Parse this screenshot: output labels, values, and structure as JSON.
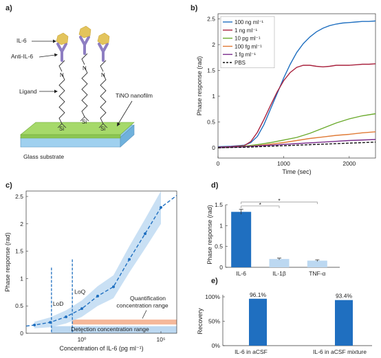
{
  "panels": {
    "a": {
      "letter": "a)",
      "labels": {
        "il6": "IL-6",
        "anti": "Anti-IL-6",
        "ligand": "Ligand",
        "film": "TiNO nanofilm",
        "substrate": "Glass substrate",
        "n": "N",
        "si": "Si"
      },
      "colors": {
        "il6": "#e3c45c",
        "anti": "#8e7ec2",
        "film": "#a6d96a",
        "substrate": "#8ec6e8"
      }
    },
    "b": {
      "letter": "b)",
      "chart_data": {
        "type": "line",
        "xlabel": "Time (sec)",
        "ylabel": "Phase response (rad)",
        "xlim": [
          0,
          2400
        ],
        "ylim": [
          -0.2,
          2.6
        ],
        "xticks": [
          0,
          1000,
          2000
        ],
        "yticks": [
          0,
          0.5,
          1,
          1.5,
          2,
          2.5
        ],
        "legend_position": "top-left",
        "series": [
          {
            "name": "100 ng ml⁻¹",
            "color": "#1f6fc0",
            "dash": "solid",
            "x": [
              0,
              200,
              400,
              500,
              600,
              700,
              800,
              900,
              1000,
              1100,
              1200,
              1300,
              1400,
              1500,
              1600,
              1700,
              1800,
              1900,
              2000,
              2100,
              2200,
              2300,
              2400
            ],
            "y": [
              0.02,
              0.03,
              0.05,
              0.1,
              0.22,
              0.45,
              0.75,
              1.05,
              1.35,
              1.62,
              1.85,
              2.02,
              2.15,
              2.25,
              2.32,
              2.37,
              2.4,
              2.42,
              2.43,
              2.44,
              2.45,
              2.45,
              2.46
            ]
          },
          {
            "name": "1 ng ml⁻¹",
            "color": "#a8203c",
            "dash": "solid",
            "x": [
              0,
              200,
              400,
              500,
              600,
              700,
              800,
              900,
              1000,
              1100,
              1200,
              1300,
              1400,
              1500,
              1600,
              1700,
              1800,
              1900,
              2000,
              2100,
              2200,
              2300,
              2400
            ],
            "y": [
              0.01,
              0.02,
              0.04,
              0.12,
              0.3,
              0.55,
              0.82,
              1.08,
              1.3,
              1.46,
              1.56,
              1.6,
              1.6,
              1.58,
              1.57,
              1.58,
              1.6,
              1.6,
              1.6,
              1.61,
              1.62,
              1.62,
              1.63
            ]
          },
          {
            "name": "10 pg ml⁻¹",
            "color": "#6aaa2c",
            "dash": "solid",
            "x": [
              0,
              200,
              400,
              600,
              800,
              1000,
              1200,
              1400,
              1600,
              1800,
              2000,
              2200,
              2400
            ],
            "y": [
              0.0,
              0.01,
              0.03,
              0.06,
              0.1,
              0.15,
              0.2,
              0.28,
              0.38,
              0.48,
              0.56,
              0.62,
              0.66
            ]
          },
          {
            "name": "100 fg ml⁻¹",
            "color": "#e07a35",
            "dash": "solid",
            "x": [
              0,
              200,
              400,
              600,
              800,
              1000,
              1200,
              1400,
              1600,
              1800,
              2000,
              2200,
              2400
            ],
            "y": [
              0.0,
              0.01,
              0.02,
              0.04,
              0.07,
              0.1,
              0.14,
              0.18,
              0.21,
              0.24,
              0.26,
              0.29,
              0.31
            ]
          },
          {
            "name": "1 fg ml⁻¹",
            "color": "#7a2c8c",
            "dash": "solid",
            "x": [
              0,
              400,
              800,
              1200,
              1600,
              2000,
              2400
            ],
            "y": [
              0.0,
              0.02,
              0.05,
              0.08,
              0.11,
              0.14,
              0.16
            ]
          },
          {
            "name": "PBS",
            "color": "#111111",
            "dash": "dashed",
            "x": [
              0,
              400,
              800,
              1200,
              1600,
              2000,
              2400
            ],
            "y": [
              0.0,
              0.01,
              0.03,
              0.05,
              0.07,
              0.09,
              0.11
            ]
          }
        ]
      }
    },
    "c": {
      "letter": "c)",
      "chart_data": {
        "type": "scatter",
        "xscale": "log",
        "xlabel": "Concentration of IL-6 (pg ml⁻¹)",
        "ylabel": "Phase response (rad)",
        "xlim": [
          0.0003,
          1000000
        ],
        "ylim": [
          0,
          2.6
        ],
        "xticks": [
          1,
          100000
        ],
        "xticklabels": [
          "10⁰",
          "10⁵"
        ],
        "yticks": [
          0,
          0.5,
          1,
          1.5,
          2,
          2.5
        ],
        "points": {
          "x": [
            0.001,
            0.01,
            0.1,
            1,
            10,
            100,
            1000,
            10000,
            100000
          ],
          "y": [
            0.15,
            0.2,
            0.3,
            0.45,
            0.68,
            0.85,
            1.35,
            1.82,
            2.3
          ]
        },
        "lod_x": 0.012,
        "loq_x": 0.25,
        "annotations": {
          "lod": "LoD",
          "loq": "LoQ",
          "quant_1": "Quantification",
          "quant_2": "concentration range",
          "detect": "Detection concentration range"
        },
        "colors": {
          "fit": "#1f6fc0",
          "band": "#bcd8f1",
          "quant": "#f5b89a",
          "detect": "#bcd8f1"
        }
      }
    },
    "d": {
      "letter": "d)",
      "chart_data": {
        "type": "bar",
        "ylabel": "Phase response (rad)",
        "categories": [
          "IL-6",
          "IL-1β",
          "TNF-α"
        ],
        "values": [
          1.33,
          0.2,
          0.16
        ],
        "errors": [
          0.06,
          0.02,
          0.02
        ],
        "colors": [
          "#1f6fc0",
          "#bcd8f1",
          "#bcd8f1"
        ],
        "ylim": [
          0,
          1.5
        ],
        "yticks": [
          0,
          0.5,
          1,
          1.5
        ],
        "significance": [
          "*",
          "*"
        ]
      }
    },
    "e": {
      "letter": "e)",
      "chart_data": {
        "type": "bar",
        "ylabel": "Recovery",
        "categories": [
          "IL-6 in aCSF",
          "IL-6 in aCSF mixture"
        ],
        "values": [
          96.1,
          93.4
        ],
        "value_labels": [
          "96.1%",
          "93.4%"
        ],
        "ylim": [
          0,
          100
        ],
        "yticks": [
          0,
          50,
          100
        ],
        "yticklabels": [
          "0%",
          "50%",
          "100%"
        ],
        "color": "#1f6fc0"
      }
    }
  }
}
